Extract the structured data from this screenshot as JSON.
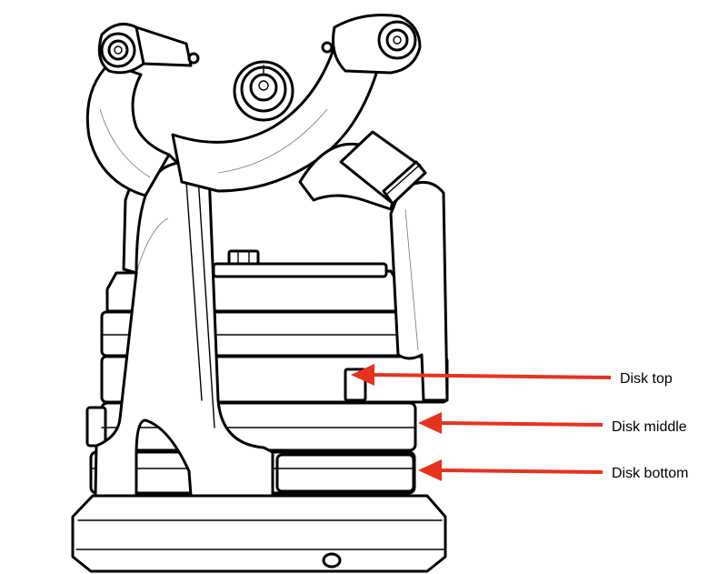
{
  "colors": {
    "arrow": "#e8321e",
    "line": "#000000",
    "background": "#ffffff"
  },
  "callouts": [
    {
      "id": "disk-top",
      "label": "Disk top"
    },
    {
      "id": "disk-middle",
      "label": "Disk middle"
    },
    {
      "id": "disk-bottom",
      "label": "Disk bottom"
    }
  ]
}
